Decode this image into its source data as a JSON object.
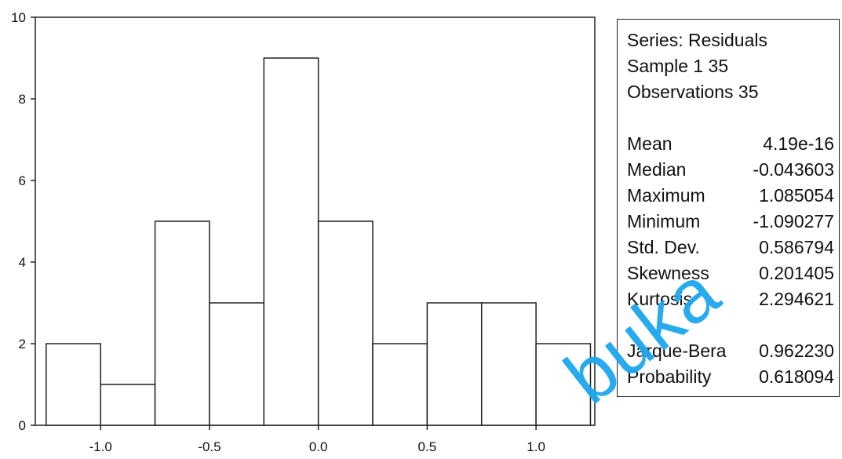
{
  "chart_data": {
    "type": "bar",
    "title": "",
    "xlabel": "",
    "ylabel": "",
    "bins": [
      {
        "x0": -1.25,
        "x1": -1.0,
        "count": 2
      },
      {
        "x0": -1.0,
        "x1": -0.75,
        "count": 1
      },
      {
        "x0": -0.75,
        "x1": -0.5,
        "count": 5
      },
      {
        "x0": -0.5,
        "x1": -0.25,
        "count": 3
      },
      {
        "x0": -0.25,
        "x1": 0.0,
        "count": 9
      },
      {
        "x0": 0.0,
        "x1": 0.25,
        "count": 5
      },
      {
        "x0": 0.25,
        "x1": 0.5,
        "count": 2
      },
      {
        "x0": 0.5,
        "x1": 0.75,
        "count": 3
      },
      {
        "x0": 0.75,
        "x1": 1.0,
        "count": 3
      },
      {
        "x0": 1.0,
        "x1": 1.25,
        "count": 2
      }
    ],
    "xlim": [
      -1.3,
      1.27
    ],
    "ylim": [
      0,
      10
    ],
    "x_ticks": [
      "-1.0",
      "-0.5",
      "0.0",
      "0.5",
      "1.0"
    ],
    "x_tick_values": [
      -1.0,
      -0.5,
      0.0,
      0.5,
      1.0
    ],
    "y_ticks": [
      "0",
      "2",
      "4",
      "6",
      "8",
      "10"
    ],
    "y_tick_values": [
      0,
      2,
      4,
      6,
      8,
      10
    ],
    "grid": false,
    "bar_fill": "#ffffff",
    "bar_stroke": "#222222"
  },
  "stats": {
    "header": [
      "Series: Residuals",
      "Sample 1 35",
      "Observations 35"
    ],
    "rows": [
      {
        "label": "Mean",
        "value": "4.19e-16"
      },
      {
        "label": "Median",
        "value": "-0.043603"
      },
      {
        "label": "Maximum",
        "value": "1.085054"
      },
      {
        "label": "Minimum",
        "value": "-1.090277"
      },
      {
        "label": "Std. Dev.",
        "value": "0.586794"
      },
      {
        "label": "Skewness",
        "value": "0.201405"
      },
      {
        "label": "Kurtosis",
        "value": "2.294621"
      }
    ],
    "test_rows": [
      {
        "label": "Jarque-Bera",
        "value": "0.962230"
      },
      {
        "label": "Probability",
        "value": "0.618094"
      }
    ]
  },
  "watermark": {
    "text": "buka",
    "color": "#1da6ee"
  }
}
